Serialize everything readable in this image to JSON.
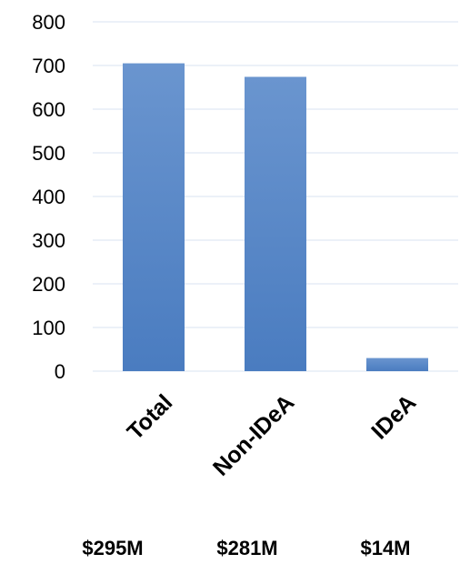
{
  "chart_data": {
    "type": "bar",
    "categories": [
      "Total",
      "Non-IDeA",
      "IDeA"
    ],
    "values": [
      705,
      674,
      30
    ],
    "ylim": [
      0,
      800
    ],
    "yticks": [
      0,
      100,
      200,
      300,
      400,
      500,
      600,
      700,
      800
    ],
    "ytick_labels": [
      "0",
      "100",
      "200",
      "300",
      "400",
      "500",
      "600",
      "700",
      "800"
    ],
    "grid": true,
    "legend": "none",
    "bar_color": "#4a7cc0",
    "bar_color_top": "#6a95cf",
    "grid_color": "#d9e3f1"
  },
  "footer": {
    "amounts": [
      "$295M",
      "$281M",
      "$14M"
    ]
  }
}
